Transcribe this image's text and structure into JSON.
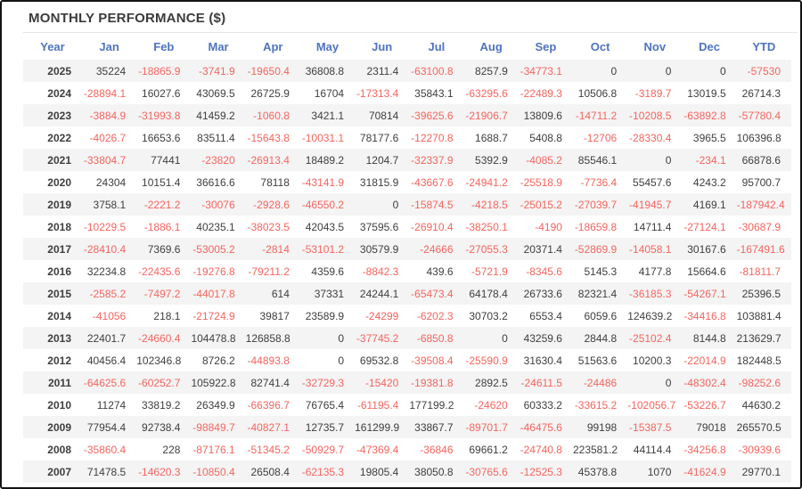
{
  "panel": {
    "title": "MONTHLY PERFORMANCE ($)"
  },
  "colors": {
    "header_blue": "#4d74bf",
    "negative_red": "#f5655d",
    "positive_text": "#3e3e3e",
    "stripe_row": "#f4f4f4",
    "title_text": "#3b3b3b"
  },
  "chart_data": {
    "type": "table",
    "title": "MONTHLY PERFORMANCE ($)",
    "columns": [
      "Year",
      "Jan",
      "Feb",
      "Mar",
      "Apr",
      "May",
      "Jun",
      "Jul",
      "Aug",
      "Sep",
      "Oct",
      "Nov",
      "Dec",
      "YTD"
    ],
    "rows": [
      {
        "year": "2025",
        "values": [
          "35224",
          "-18865.9",
          "-3741.9",
          "-19650.4",
          "36808.8",
          "2311.4",
          "-63100.8",
          "8257.9",
          "-34773.1",
          "0",
          "0",
          "0",
          "-57530"
        ]
      },
      {
        "year": "2024",
        "values": [
          "-28894.1",
          "16027.6",
          "43069.5",
          "26725.9",
          "16704",
          "-17313.4",
          "35843.1",
          "-63295.6",
          "-22489.3",
          "10506.8",
          "-3189.7",
          "13019.5",
          "26714.3"
        ]
      },
      {
        "year": "2023",
        "values": [
          "-3884.9",
          "-31993.8",
          "41459.2",
          "-1060.8",
          "3421.1",
          "70814",
          "-39625.6",
          "-21906.7",
          "13809.6",
          "-14711.2",
          "-10208.5",
          "-63892.8",
          "-57780.4"
        ]
      },
      {
        "year": "2022",
        "values": [
          "-4026.7",
          "16653.6",
          "83511.4",
          "-15643.8",
          "-10031.1",
          "78177.6",
          "-12270.8",
          "1688.7",
          "5408.8",
          "-12706",
          "-28330.4",
          "3965.5",
          "106396.8"
        ]
      },
      {
        "year": "2021",
        "values": [
          "-33804.7",
          "77441",
          "-23820",
          "-26913.4",
          "18489.2",
          "1204.7",
          "-32337.9",
          "5392.9",
          "-4085.2",
          "85546.1",
          "0",
          "-234.1",
          "66878.6"
        ]
      },
      {
        "year": "2020",
        "values": [
          "24304",
          "10151.4",
          "36616.6",
          "78118",
          "-43141.9",
          "31815.9",
          "-43667.6",
          "-24941.2",
          "-25518.9",
          "-7736.4",
          "55457.6",
          "4243.2",
          "95700.7"
        ]
      },
      {
        "year": "2019",
        "values": [
          "3758.1",
          "-2221.2",
          "-30076",
          "-2928.6",
          "-46550.2",
          "0",
          "-15874.5",
          "-4218.5",
          "-25015.2",
          "-27039.7",
          "-41945.7",
          "4169.1",
          "-187942.4"
        ]
      },
      {
        "year": "2018",
        "values": [
          "-10229.5",
          "-1886.1",
          "40235.1",
          "-38023.5",
          "42043.5",
          "37595.6",
          "-26910.4",
          "-38250.1",
          "-4190",
          "-18659.8",
          "14711.4",
          "-27124.1",
          "-30687.9"
        ]
      },
      {
        "year": "2017",
        "values": [
          "-28410.4",
          "7369.6",
          "-53005.2",
          "-2814",
          "-53101.2",
          "30579.9",
          "-24666",
          "-27055.3",
          "20371.4",
          "-52869.9",
          "-14058.1",
          "30167.6",
          "-167491.6"
        ]
      },
      {
        "year": "2016",
        "values": [
          "32234.8",
          "-22435.6",
          "-19276.8",
          "-79211.2",
          "4359.6",
          "-8842.3",
          "439.6",
          "-5721.9",
          "-8345.6",
          "5145.3",
          "4177.8",
          "15664.6",
          "-81811.7"
        ]
      },
      {
        "year": "2015",
        "values": [
          "-2585.2",
          "-7497.2",
          "-44017.8",
          "614",
          "37331",
          "24244.1",
          "-65473.4",
          "64178.4",
          "26733.6",
          "82321.4",
          "-36185.3",
          "-54267.1",
          "25396.5"
        ]
      },
      {
        "year": "2014",
        "values": [
          "-41056",
          "218.1",
          "-21724.9",
          "39817",
          "23589.9",
          "-24299",
          "-6202.3",
          "30703.2",
          "6553.4",
          "6059.6",
          "124639.2",
          "-34416.8",
          "103881.4"
        ]
      },
      {
        "year": "2013",
        "values": [
          "22401.7",
          "-24660.4",
          "104478.8",
          "126858.8",
          "0",
          "-37745.2",
          "-6850.8",
          "0",
          "43259.6",
          "2844.8",
          "-25102.4",
          "8144.8",
          "213629.7"
        ]
      },
      {
        "year": "2012",
        "values": [
          "40456.4",
          "102346.8",
          "8726.2",
          "-44893.8",
          "0",
          "69532.8",
          "-39508.4",
          "-25590.9",
          "31630.4",
          "51563.6",
          "10200.3",
          "-22014.9",
          "182448.5"
        ]
      },
      {
        "year": "2011",
        "values": [
          "-64625.6",
          "-60252.7",
          "105922.8",
          "82741.4",
          "-32729.3",
          "-15420",
          "-19381.8",
          "2892.5",
          "-24611.5",
          "-24486",
          "0",
          "-48302.4",
          "-98252.6"
        ]
      },
      {
        "year": "2010",
        "values": [
          "11274",
          "33819.2",
          "26349.9",
          "-66396.7",
          "76765.4",
          "-61195.4",
          "177199.2",
          "-24620",
          "60333.2",
          "-33615.2",
          "-102056.7",
          "-53226.7",
          "44630.2"
        ]
      },
      {
        "year": "2009",
        "values": [
          "77954.4",
          "92738.4",
          "-98849.7",
          "-40827.1",
          "12735.7",
          "161299.9",
          "33867.7",
          "-89701.7",
          "-46475.6",
          "99198",
          "-15387.5",
          "79018",
          "265570.5"
        ]
      },
      {
        "year": "2008",
        "values": [
          "-35860.4",
          "228",
          "-87176.1",
          "-51345.2",
          "-50929.7",
          "-47369.4",
          "-36846",
          "69661.2",
          "-24740.8",
          "223581.2",
          "44114.4",
          "-34256.8",
          "-30939.6"
        ]
      },
      {
        "year": "2007",
        "values": [
          "71478.5",
          "-14620.3",
          "-10850.4",
          "26508.4",
          "-62135.3",
          "19805.4",
          "38050.8",
          "-30765.6",
          "-12525.3",
          "45378.8",
          "1070",
          "-41624.9",
          "29770.1"
        ]
      }
    ]
  }
}
